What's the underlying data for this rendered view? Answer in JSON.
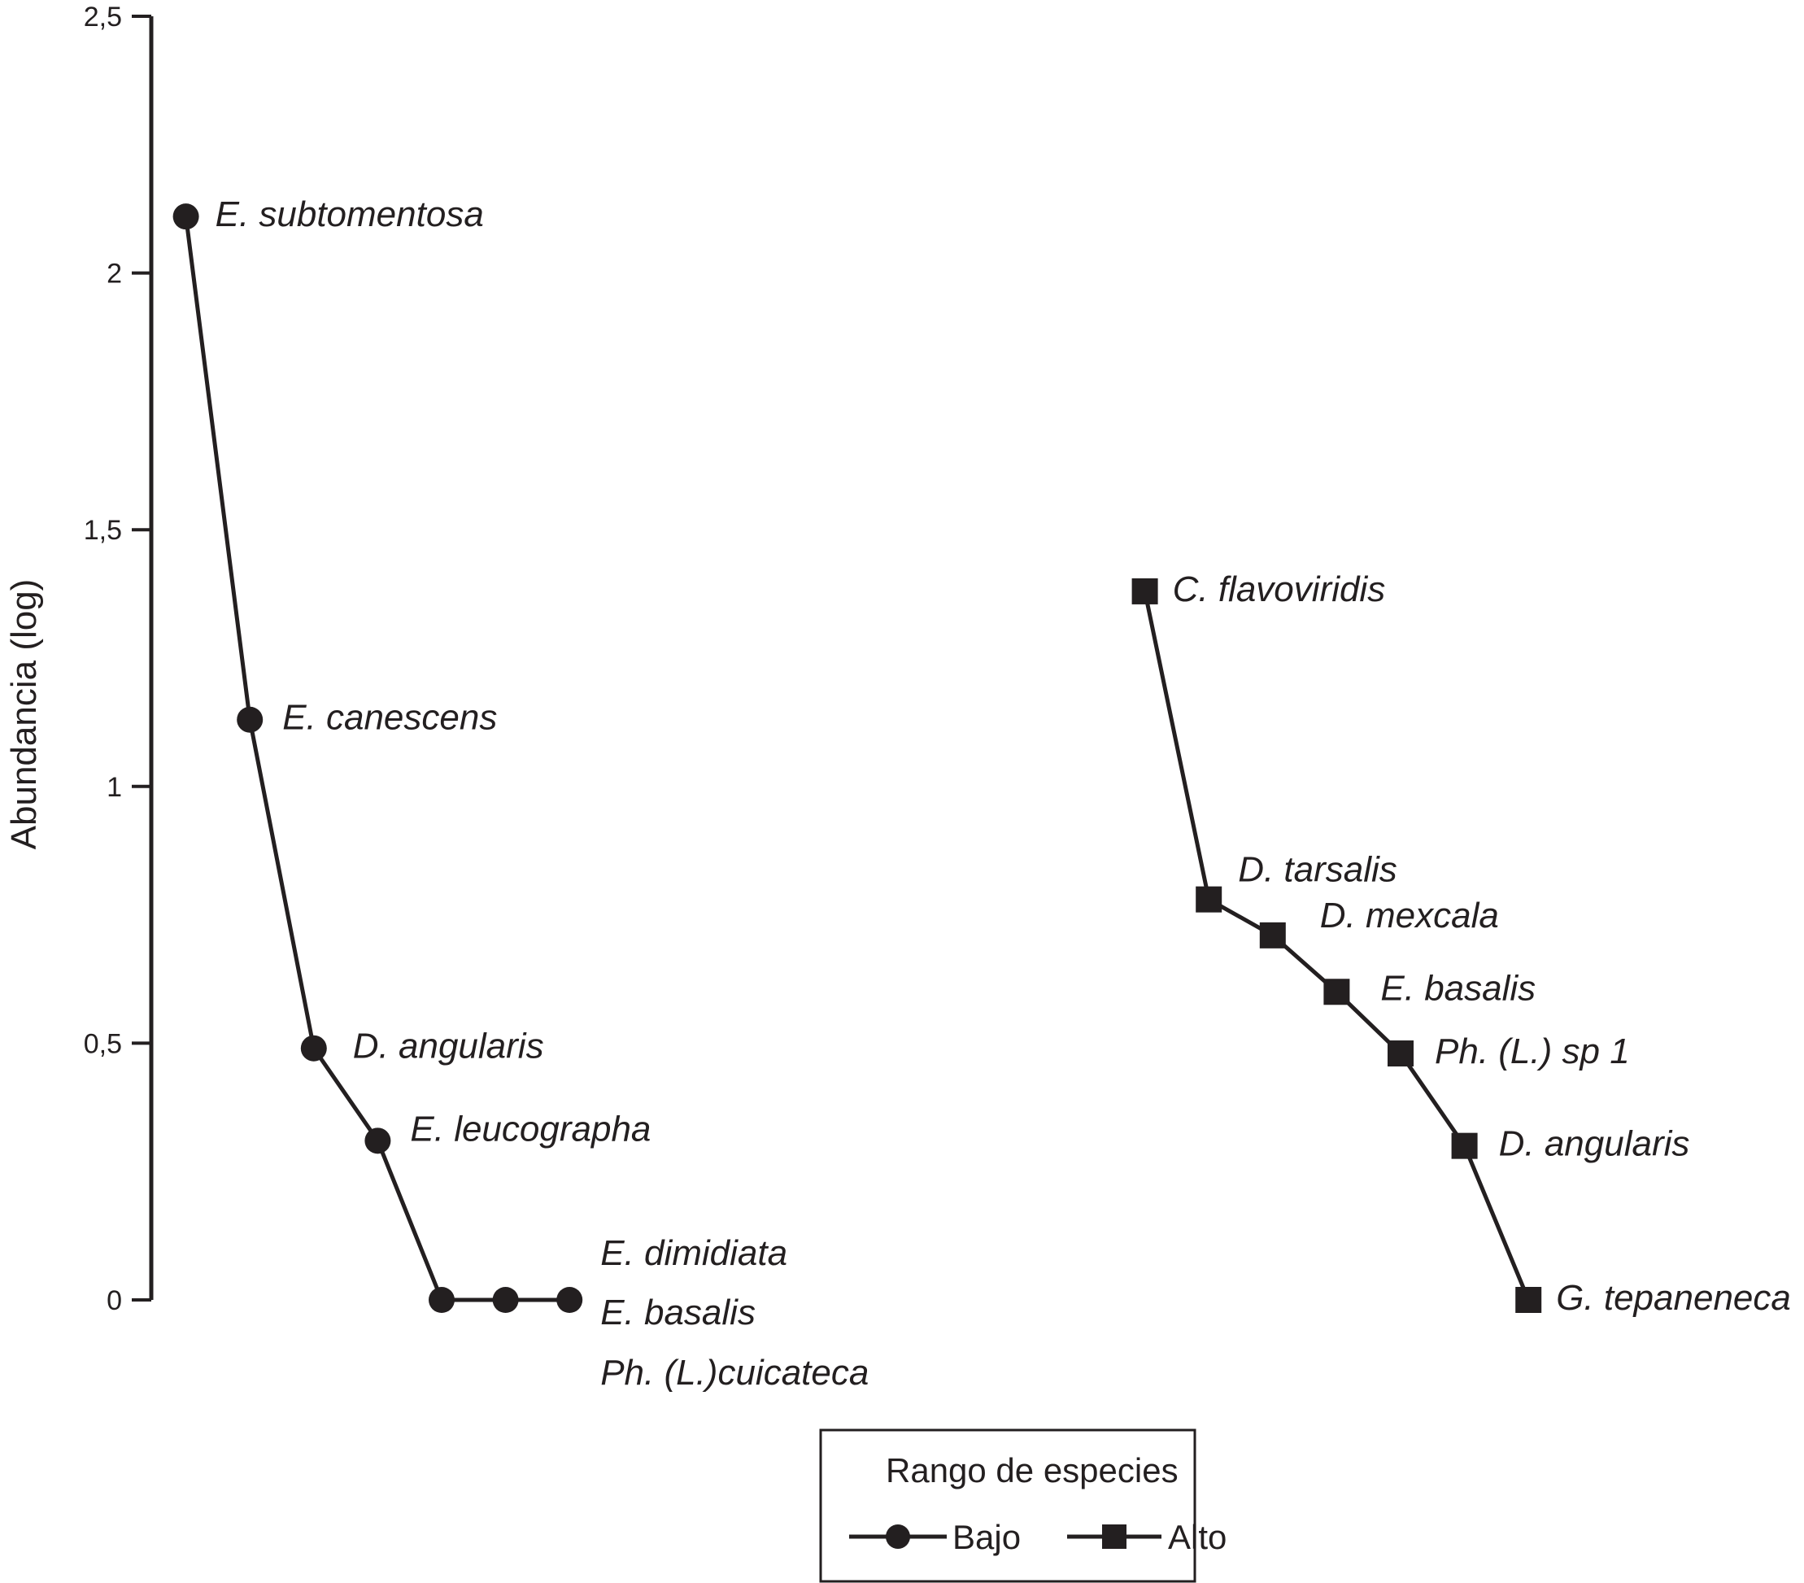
{
  "chart_data": {
    "type": "line",
    "ylabel": "Abundancia (log)",
    "ylim": [
      0,
      2.5
    ],
    "y_ticks": [
      "0",
      "0,5",
      "1",
      "1,5",
      "2",
      "2,5"
    ],
    "y_tick_values": [
      0,
      0.5,
      1,
      1.5,
      2,
      2.5
    ],
    "grid": false,
    "legend": {
      "title": "Rango de  especies",
      "position": "bottom-center"
    },
    "series": [
      {
        "name": "Bajo",
        "marker": "circle",
        "color": "#231f20",
        "x": [
          1,
          2,
          3,
          4,
          5,
          6,
          7
        ],
        "values": [
          2.11,
          1.13,
          0.49,
          0.31,
          0,
          0,
          0
        ],
        "labels": [
          "E. subtomentosa",
          "E. canescens",
          "D. angularis",
          "E. leucographa",
          "E. dimidiata",
          "E. basalis",
          "Ph. (L.)cuicateca"
        ]
      },
      {
        "name": "Alto",
        "marker": "square",
        "color": "#231f20",
        "x": [
          16,
          17,
          18,
          19,
          20,
          21,
          22
        ],
        "values": [
          1.38,
          0.78,
          0.71,
          0.6,
          0.48,
          0.3,
          0
        ],
        "labels": [
          "C. flavoviridis",
          "D. tarsalis",
          "D. mexcala",
          "E. basalis",
          "Ph. (L.) sp 1",
          "D. angularis",
          "G. tepaneneca"
        ]
      }
    ]
  }
}
